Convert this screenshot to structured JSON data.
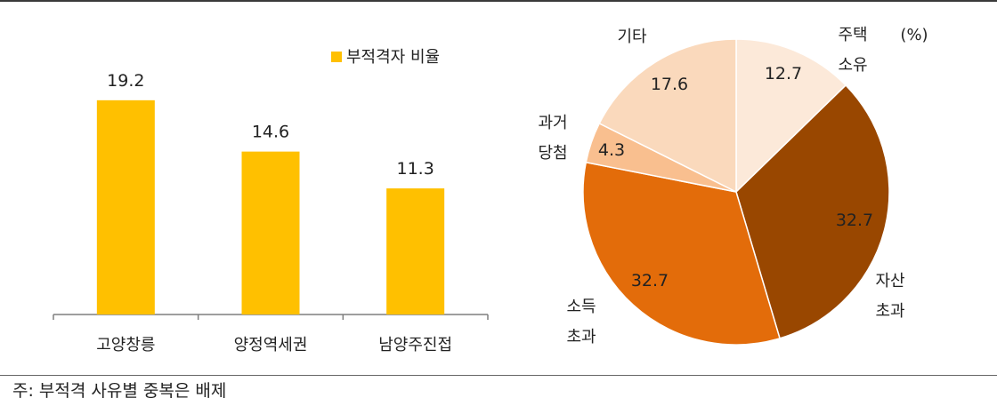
{
  "chart_data": [
    {
      "type": "bar",
      "categories": [
        "고양창릉",
        "양정역세권",
        "남양주진접"
      ],
      "series": [
        {
          "name": "부적격자 비율",
          "values": [
            19.2,
            14.6,
            11.3
          ]
        }
      ],
      "data_labels": [
        "19.2",
        "14.6",
        "11.3"
      ],
      "ylim": [
        0,
        25
      ],
      "grid": false,
      "legend": "top-right",
      "color": "#FFC000"
    },
    {
      "type": "pie",
      "unit_label": "(%)",
      "slices": [
        {
          "label": "주택 소유",
          "label_lines": [
            "주택",
            "소유"
          ],
          "value": 12.7,
          "value_label": "12.7",
          "color": "#FCE9D9"
        },
        {
          "label": "자산 초과",
          "label_lines": [
            "자산",
            "초과"
          ],
          "value": 32.7,
          "value_label": "32.7",
          "color": "#994700"
        },
        {
          "label": "소득 초과",
          "label_lines": [
            "소득",
            "초과"
          ],
          "value": 32.7,
          "value_label": "32.7",
          "color": "#E36C0A"
        },
        {
          "label": "과거 당첨",
          "label_lines": [
            "과거",
            "당첨"
          ],
          "value": 4.3,
          "value_label": "4.3",
          "color": "#F9BF8F"
        },
        {
          "label": "기타",
          "label_lines": [
            "기타"
          ],
          "value": 17.6,
          "value_label": "17.6",
          "color": "#FAD9BC"
        }
      ]
    }
  ],
  "footnote": "주: 부적격 사유별 중복은 배제"
}
